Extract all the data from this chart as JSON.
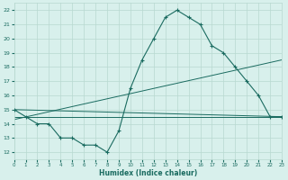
{
  "xlabel": "Humidex (Indice chaleur)",
  "xlim": [
    0,
    23
  ],
  "ylim": [
    11.5,
    22.5
  ],
  "yticks": [
    12,
    13,
    14,
    15,
    16,
    17,
    18,
    19,
    20,
    21,
    22
  ],
  "xticks": [
    0,
    1,
    2,
    3,
    4,
    5,
    6,
    7,
    8,
    9,
    10,
    11,
    12,
    13,
    14,
    15,
    16,
    17,
    18,
    19,
    20,
    21,
    22,
    23
  ],
  "bg_color": "#d8f0ec",
  "grid_color": "#b8d8d0",
  "line_color": "#1a6b60",
  "line1_x": [
    0,
    1,
    2,
    3,
    4,
    5,
    6,
    7,
    8,
    9,
    10,
    11,
    12,
    13,
    14,
    15,
    16,
    17,
    18,
    19,
    20,
    21,
    22,
    23
  ],
  "line1_y": [
    15,
    14.5,
    14,
    14,
    13,
    13,
    12.5,
    12.5,
    12,
    13.5,
    16.5,
    18.5,
    20,
    21.5,
    22,
    21.5,
    21,
    19.5,
    19,
    18,
    17,
    16,
    14.5,
    14.5
  ],
  "line2_x": [
    0,
    23
  ],
  "line2_y": [
    15.0,
    14.5
  ],
  "line3_x": [
    0,
    23
  ],
  "line3_y": [
    14.3,
    18.5
  ],
  "line4_x": [
    0,
    23
  ],
  "line4_y": [
    14.5,
    14.5
  ]
}
